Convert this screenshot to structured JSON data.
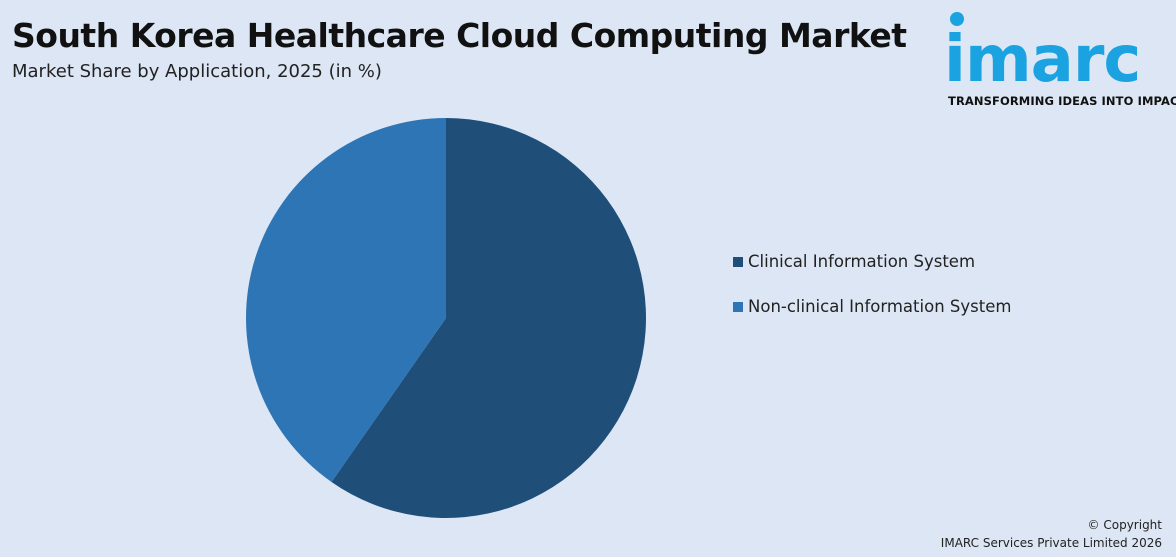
{
  "header": {
    "title": "South Korea Healthcare Cloud Computing Market",
    "subtitle": "Market Share by Application, 2025 (in %)"
  },
  "logo": {
    "text": "imarc",
    "tagline": "TRANSFORMING IDEAS INTO IMPACT",
    "color": "#1aa3e0"
  },
  "chart_data": {
    "type": "pie",
    "title": "South Korea Healthcare Cloud Computing Market",
    "subtitle": "Market Share by Application, 2025 (in %)",
    "categories": [
      "Clinical Information System",
      "Non-clinical Information System"
    ],
    "values": [
      59.7,
      40.3
    ],
    "colors": [
      "#1f4e79",
      "#2e75b6"
    ],
    "start_angle_deg": 0,
    "direction": "clockwise",
    "legend_position": "right"
  },
  "footer": {
    "copyright_line1": "© Copyright",
    "copyright_line2": "IMARC Services Private Limited 2026"
  }
}
